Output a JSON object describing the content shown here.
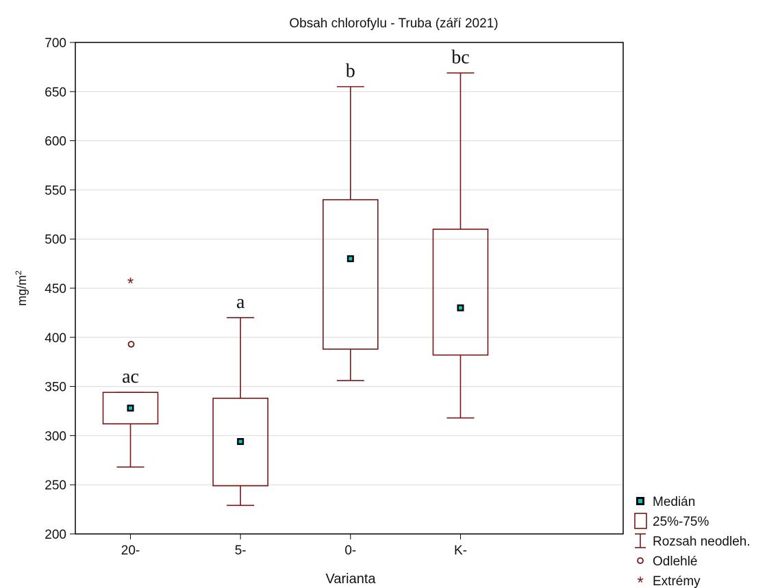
{
  "chart_data": {
    "type": "boxplot",
    "title": "Obsah chlorofylu - Truba (září 2021)",
    "xlabel": "Varianta",
    "ylabel": "mg/m",
    "ylabel_superscript": "2",
    "ylim": [
      200,
      700
    ],
    "yticks": [
      "200",
      "250",
      "300",
      "350",
      "400",
      "450",
      "500",
      "550",
      "600",
      "650",
      "700"
    ],
    "grid": true,
    "legend_position": "bottom-right",
    "colors": {
      "box": "#7b1416",
      "median_fill": "#00c6c6",
      "grid": "#d8d8d8"
    },
    "categories": [
      "20-",
      "5-",
      "0-",
      "K-"
    ],
    "boxes": [
      {
        "category": "20-",
        "median": 328,
        "q1": 312,
        "q3": 344,
        "whisker_low": 268,
        "whisker_high": 344,
        "outliers": [
          393
        ],
        "extremes": [
          457
        ],
        "group_label": "ac"
      },
      {
        "category": "5-",
        "median": 294,
        "q1": 249,
        "q3": 338,
        "whisker_low": 229,
        "whisker_high": 420,
        "outliers": [],
        "extremes": [],
        "group_label": "a"
      },
      {
        "category": "0-",
        "median": 480,
        "q1": 388,
        "q3": 540,
        "whisker_low": 356,
        "whisker_high": 655,
        "outliers": [],
        "extremes": [],
        "group_label": "b"
      },
      {
        "category": "K-",
        "median": 430,
        "q1": 382,
        "q3": 510,
        "whisker_low": 318,
        "whisker_high": 669,
        "outliers": [],
        "extremes": [],
        "group_label": "bc"
      }
    ],
    "legend": [
      {
        "symbol": "median",
        "label": "Medián"
      },
      {
        "symbol": "box",
        "label": "25%-75%"
      },
      {
        "symbol": "whisker",
        "label": "Rozsah neodleh."
      },
      {
        "symbol": "outlier",
        "label": "Odlehlé"
      },
      {
        "symbol": "extreme",
        "label": "Extrémy"
      }
    ]
  }
}
